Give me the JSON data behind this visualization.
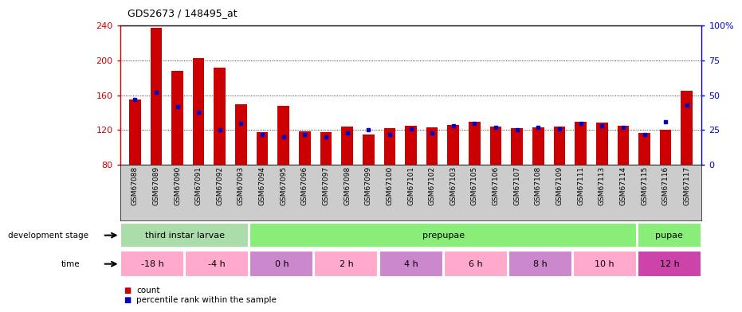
{
  "title": "GDS2673 / 148495_at",
  "samples": [
    "GSM67088",
    "GSM67089",
    "GSM67090",
    "GSM67091",
    "GSM67092",
    "GSM67093",
    "GSM67094",
    "GSM67095",
    "GSM67096",
    "GSM67097",
    "GSM67098",
    "GSM67099",
    "GSM67100",
    "GSM67101",
    "GSM67102",
    "GSM67103",
    "GSM67105",
    "GSM67106",
    "GSM67107",
    "GSM67108",
    "GSM67109",
    "GSM67111",
    "GSM67113",
    "GSM67114",
    "GSM67115",
    "GSM67116",
    "GSM67117"
  ],
  "counts": [
    155,
    238,
    188,
    203,
    192,
    150,
    118,
    148,
    119,
    118,
    124,
    115,
    122,
    125,
    123,
    126,
    130,
    124,
    122,
    123,
    124,
    130,
    129,
    125,
    117,
    120,
    165
  ],
  "percentiles": [
    47,
    52,
    42,
    38,
    25,
    30,
    22,
    20,
    22,
    20,
    23,
    25,
    22,
    26,
    23,
    28,
    30,
    27,
    25,
    27,
    26,
    30,
    28,
    27,
    22,
    31,
    43
  ],
  "ylim_left": [
    80,
    240
  ],
  "ylim_right": [
    0,
    100
  ],
  "yticks_left": [
    80,
    120,
    160,
    200,
    240
  ],
  "yticks_right": [
    0,
    25,
    50,
    75,
    100
  ],
  "bar_color": "#cc0000",
  "percentile_color": "#0000cc",
  "ylabel_left_color": "#cc0000",
  "ylabel_right_color": "#0000cc",
  "label_bg_color": "#cccccc",
  "chart_bg_color": "#ffffff",
  "development_stages": [
    {
      "label": "third instar larvae",
      "start": 0,
      "end": 6,
      "color": "#aaddaa"
    },
    {
      "label": "prepupae",
      "start": 6,
      "end": 24,
      "color": "#88ee77"
    },
    {
      "label": "pupae",
      "start": 24,
      "end": 27,
      "color": "#88ee77"
    }
  ],
  "time_groups": [
    {
      "label": "-18 h",
      "start": 0,
      "end": 3,
      "color": "#ffaacc"
    },
    {
      "label": "-4 h",
      "start": 3,
      "end": 6,
      "color": "#ffaacc"
    },
    {
      "label": "0 h",
      "start": 6,
      "end": 9,
      "color": "#cc88cc"
    },
    {
      "label": "2 h",
      "start": 9,
      "end": 12,
      "color": "#ffaacc"
    },
    {
      "label": "4 h",
      "start": 12,
      "end": 15,
      "color": "#cc88cc"
    },
    {
      "label": "6 h",
      "start": 15,
      "end": 18,
      "color": "#ffaacc"
    },
    {
      "label": "8 h",
      "start": 18,
      "end": 21,
      "color": "#cc88cc"
    },
    {
      "label": "10 h",
      "start": 21,
      "end": 24,
      "color": "#ffaacc"
    },
    {
      "label": "12 h",
      "start": 24,
      "end": 27,
      "color": "#cc44aa"
    }
  ]
}
